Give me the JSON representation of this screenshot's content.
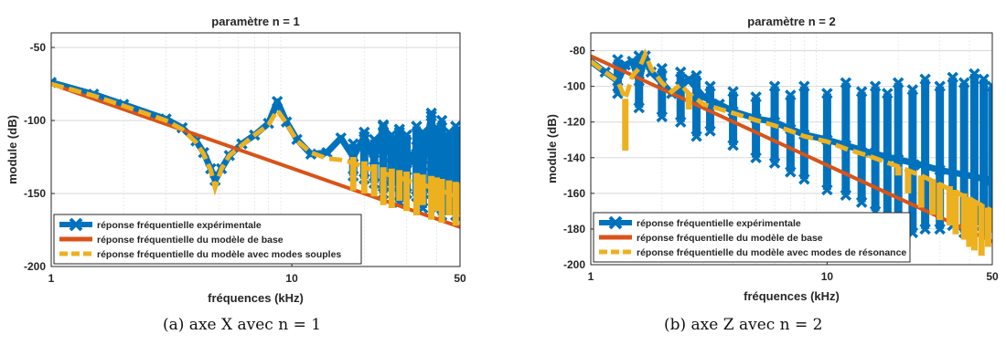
{
  "chart_data": [
    {
      "type": "line",
      "title": "paramètre n = 1",
      "xlabel": "fréquences (kHz)",
      "ylabel": "module (dB)",
      "x_scale": "log",
      "xlim": [
        1,
        50
      ],
      "ylim": [
        -200,
        -40
      ],
      "xticks": [
        1,
        10,
        50
      ],
      "xtick_labels": [
        "1",
        "10",
        "50"
      ],
      "yticks": [
        -200,
        -150,
        -100,
        -50
      ],
      "ytick_labels": [
        "-200",
        "-150",
        "-100",
        "-50"
      ],
      "grid": true,
      "legend_position": "bottom-left",
      "series": [
        {
          "name": "réponse fréquentielle expérimentale",
          "color": "#0072BD",
          "style": "line-markers-x",
          "points": [
            [
              1,
              -74
            ],
            [
              1.5,
              -82
            ],
            [
              2,
              -89
            ],
            [
              3,
              -99
            ],
            [
              3.5,
              -105
            ],
            [
              4,
              -114
            ],
            [
              4.3,
              -122
            ],
            [
              4.6,
              -133
            ],
            [
              4.8,
              -141
            ],
            [
              5.1,
              -133
            ],
            [
              5.5,
              -124
            ],
            [
              6.2,
              -116
            ],
            [
              7,
              -110
            ],
            [
              8,
              -102
            ],
            [
              8.7,
              -87
            ],
            [
              9.5,
              -101
            ],
            [
              10.5,
              -113
            ],
            [
              12,
              -123
            ],
            [
              14,
              -122
            ],
            [
              16,
              -112
            ],
            [
              18,
              -125
            ],
            [
              20,
              -111
            ],
            [
              22,
              -127
            ],
            [
              24,
              -104
            ],
            [
              26,
              -125
            ],
            [
              28,
              -108
            ],
            [
              30,
              -134
            ],
            [
              33,
              -118
            ],
            [
              35,
              -131
            ],
            [
              38,
              -97
            ],
            [
              40,
              -128
            ],
            [
              42,
              -114
            ],
            [
              45,
              -131
            ],
            [
              48,
              -118
            ],
            [
              50,
              -133
            ]
          ],
          "envelope": [
            [
              18,
              -116,
              -138
            ],
            [
              20,
              -108,
              -140
            ],
            [
              22,
              -113,
              -143
            ],
            [
              24,
              -103,
              -150
            ],
            [
              26,
              -110,
              -145
            ],
            [
              28,
              -106,
              -156
            ],
            [
              30,
              -110,
              -150
            ],
            [
              33,
              -104,
              -152
            ],
            [
              35,
              -108,
              -160
            ],
            [
              38,
              -95,
              -150
            ],
            [
              40,
              -105,
              -160
            ],
            [
              42,
              -100,
              -165
            ],
            [
              45,
              -108,
              -156
            ],
            [
              48,
              -104,
              -165
            ],
            [
              50,
              -112,
              -157
            ]
          ]
        },
        {
          "name": "réponse fréquentielle du modèle de base",
          "color": "#D95319",
          "style": "line",
          "points": [
            [
              1,
              -75
            ],
            [
              50,
              -173
            ]
          ]
        },
        {
          "name": "réponse fréquentielle du modèle avec modes souples",
          "color": "#EDB120",
          "style": "dashed",
          "points": [
            [
              1,
              -75
            ],
            [
              1.5,
              -83
            ],
            [
              2,
              -90
            ],
            [
              3,
              -100
            ],
            [
              3.5,
              -106
            ],
            [
              4,
              -115
            ],
            [
              4.3,
              -123
            ],
            [
              4.6,
              -134
            ],
            [
              4.8,
              -146
            ],
            [
              5.1,
              -133
            ],
            [
              5.5,
              -124
            ],
            [
              6.2,
              -117
            ],
            [
              7,
              -110
            ],
            [
              8,
              -103
            ],
            [
              8.7,
              -93
            ],
            [
              9.5,
              -102
            ],
            [
              10.5,
              -114
            ],
            [
              12,
              -122
            ],
            [
              14,
              -126
            ],
            [
              16,
              -127
            ],
            [
              18,
              -129
            ],
            [
              20,
              -132
            ],
            [
              22,
              -134
            ],
            [
              25,
              -137
            ],
            [
              28,
              -139
            ],
            [
              30,
              -141
            ],
            [
              35,
              -144
            ],
            [
              40,
              -147
            ],
            [
              45,
              -150
            ],
            [
              50,
              -153
            ]
          ],
          "envelope": [
            [
              18,
              -125,
              -148
            ],
            [
              20,
              -128,
              -150
            ],
            [
              22,
              -130,
              -152
            ],
            [
              24,
              -132,
              -158
            ],
            [
              26,
              -133,
              -160
            ],
            [
              28,
              -134,
              -155
            ],
            [
              30,
              -135,
              -162
            ],
            [
              33,
              -136,
              -165
            ],
            [
              35,
              -137,
              -158
            ],
            [
              38,
              -138,
              -168
            ],
            [
              40,
              -139,
              -162
            ],
            [
              42,
              -140,
              -170
            ],
            [
              45,
              -141,
              -165
            ],
            [
              48,
              -142,
              -172
            ],
            [
              50,
              -143,
              -165
            ]
          ]
        }
      ]
    },
    {
      "type": "line",
      "title": "paramètre n = 2",
      "xlabel": "fréquences (kHz)",
      "ylabel": "module (dB)",
      "x_scale": "log",
      "xlim": [
        1,
        50
      ],
      "ylim": [
        -200,
        -70
      ],
      "xticks": [
        1,
        10,
        50
      ],
      "xtick_labels": [
        "1",
        "10",
        "50"
      ],
      "yticks": [
        -200,
        -180,
        -160,
        -140,
        -120,
        -100,
        -80
      ],
      "ytick_labels": [
        "-200",
        "-180",
        "-160",
        "-140",
        "-120",
        "-100",
        "-80"
      ],
      "grid": true,
      "legend_position": "bottom-left",
      "series": [
        {
          "name": "réponse fréquentielle expérimentale",
          "color": "#0072BD",
          "style": "line-markers-x",
          "points": [
            [
              1,
              -86
            ],
            [
              1.15,
              -92
            ],
            [
              1.3,
              -97
            ],
            [
              1.4,
              -88
            ],
            [
              1.5,
              -86
            ],
            [
              1.6,
              -97
            ],
            [
              1.7,
              -83
            ],
            [
              1.8,
              -92
            ],
            [
              2,
              -98
            ],
            [
              2.2,
              -104
            ],
            [
              2.4,
              -100
            ],
            [
              2.6,
              -96
            ],
            [
              3,
              -106
            ],
            [
              3.5,
              -110
            ],
            [
              4,
              -114
            ],
            [
              5,
              -118
            ],
            [
              6,
              -120
            ],
            [
              7,
              -124
            ],
            [
              8,
              -127
            ],
            [
              10,
              -130
            ],
            [
              12,
              -133
            ],
            [
              15,
              -137
            ],
            [
              20,
              -141
            ],
            [
              25,
              -144
            ],
            [
              30,
              -147
            ],
            [
              40,
              -150
            ],
            [
              50,
              -153
            ]
          ],
          "envelope": [
            [
              1.3,
              -85,
              -104
            ],
            [
              1.6,
              -83,
              -112
            ],
            [
              2,
              -90,
              -117
            ],
            [
              2.4,
              -92,
              -120
            ],
            [
              2.8,
              -94,
              -128
            ],
            [
              3.2,
              -100,
              -125
            ],
            [
              4,
              -103,
              -133
            ],
            [
              5,
              -106,
              -140
            ],
            [
              6,
              -100,
              -143
            ],
            [
              7,
              -105,
              -148
            ],
            [
              8,
              -100,
              -152
            ],
            [
              10,
              -104,
              -158
            ],
            [
              12,
              -98,
              -161
            ],
            [
              14,
              -103,
              -165
            ],
            [
              16,
              -100,
              -170
            ],
            [
              18,
              -104,
              -175
            ],
            [
              20,
              -98,
              -178
            ],
            [
              23,
              -102,
              -182
            ],
            [
              26,
              -96,
              -180
            ],
            [
              30,
              -100,
              -180
            ],
            [
              34,
              -95,
              -178
            ],
            [
              38,
              -98,
              -182
            ],
            [
              42,
              -93,
              -178
            ],
            [
              46,
              -96,
              -182
            ],
            [
              50,
              -100,
              -180
            ]
          ]
        },
        {
          "name": "réponse fréquentielle du modèle de base",
          "color": "#D95319",
          "style": "line",
          "points": [
            [
              1,
              -83
            ],
            [
              50,
              -187
            ]
          ]
        },
        {
          "name": "réponse fréquentielle du modèle avec modes de résonance",
          "color": "#EDB120",
          "style": "dashed",
          "points": [
            [
              1,
              -86
            ],
            [
              1.15,
              -92
            ],
            [
              1.3,
              -97
            ],
            [
              1.4,
              -107
            ],
            [
              1.5,
              -94
            ],
            [
              1.6,
              -90
            ],
            [
              1.7,
              -82
            ],
            [
              1.8,
              -90
            ],
            [
              2,
              -98
            ],
            [
              2.2,
              -103
            ],
            [
              2.4,
              -99
            ],
            [
              2.6,
              -104
            ],
            [
              3,
              -110
            ],
            [
              4,
              -115
            ],
            [
              5,
              -119
            ],
            [
              6,
              -122
            ],
            [
              7,
              -125
            ],
            [
              8,
              -128
            ],
            [
              10,
              -131
            ],
            [
              12,
              -135
            ],
            [
              15,
              -139
            ],
            [
              20,
              -145
            ],
            [
              25,
              -150
            ],
            [
              30,
              -155
            ],
            [
              40,
              -163
            ],
            [
              50,
              -170
            ]
          ],
          "envelope": [
            [
              1.4,
              -107,
              -136
            ],
            [
              2.6,
              -104,
              -113
            ],
            [
              15,
              -139,
              -140
            ],
            [
              20,
              -145,
              -150
            ],
            [
              22,
              -147,
              -160
            ],
            [
              25,
              -150,
              -168
            ],
            [
              28,
              -152,
              -172
            ],
            [
              30,
              -154,
              -175
            ],
            [
              33,
              -156,
              -178
            ],
            [
              35,
              -158,
              -183
            ],
            [
              38,
              -160,
              -186
            ],
            [
              40,
              -162,
              -190
            ],
            [
              42,
              -164,
              -192
            ],
            [
              45,
              -166,
              -195
            ],
            [
              48,
              -168,
              -190
            ],
            [
              50,
              -170,
              -182
            ]
          ]
        }
      ]
    }
  ],
  "captions": [
    "(a) axe X avec n = 1",
    "(b) axe Z avec n = 2"
  ],
  "colors": {
    "experimental": "#0072BD",
    "base_model": "#D95319",
    "mode_model": "#EDB120",
    "grid": "#dcdcdc",
    "axis": "#262626"
  }
}
